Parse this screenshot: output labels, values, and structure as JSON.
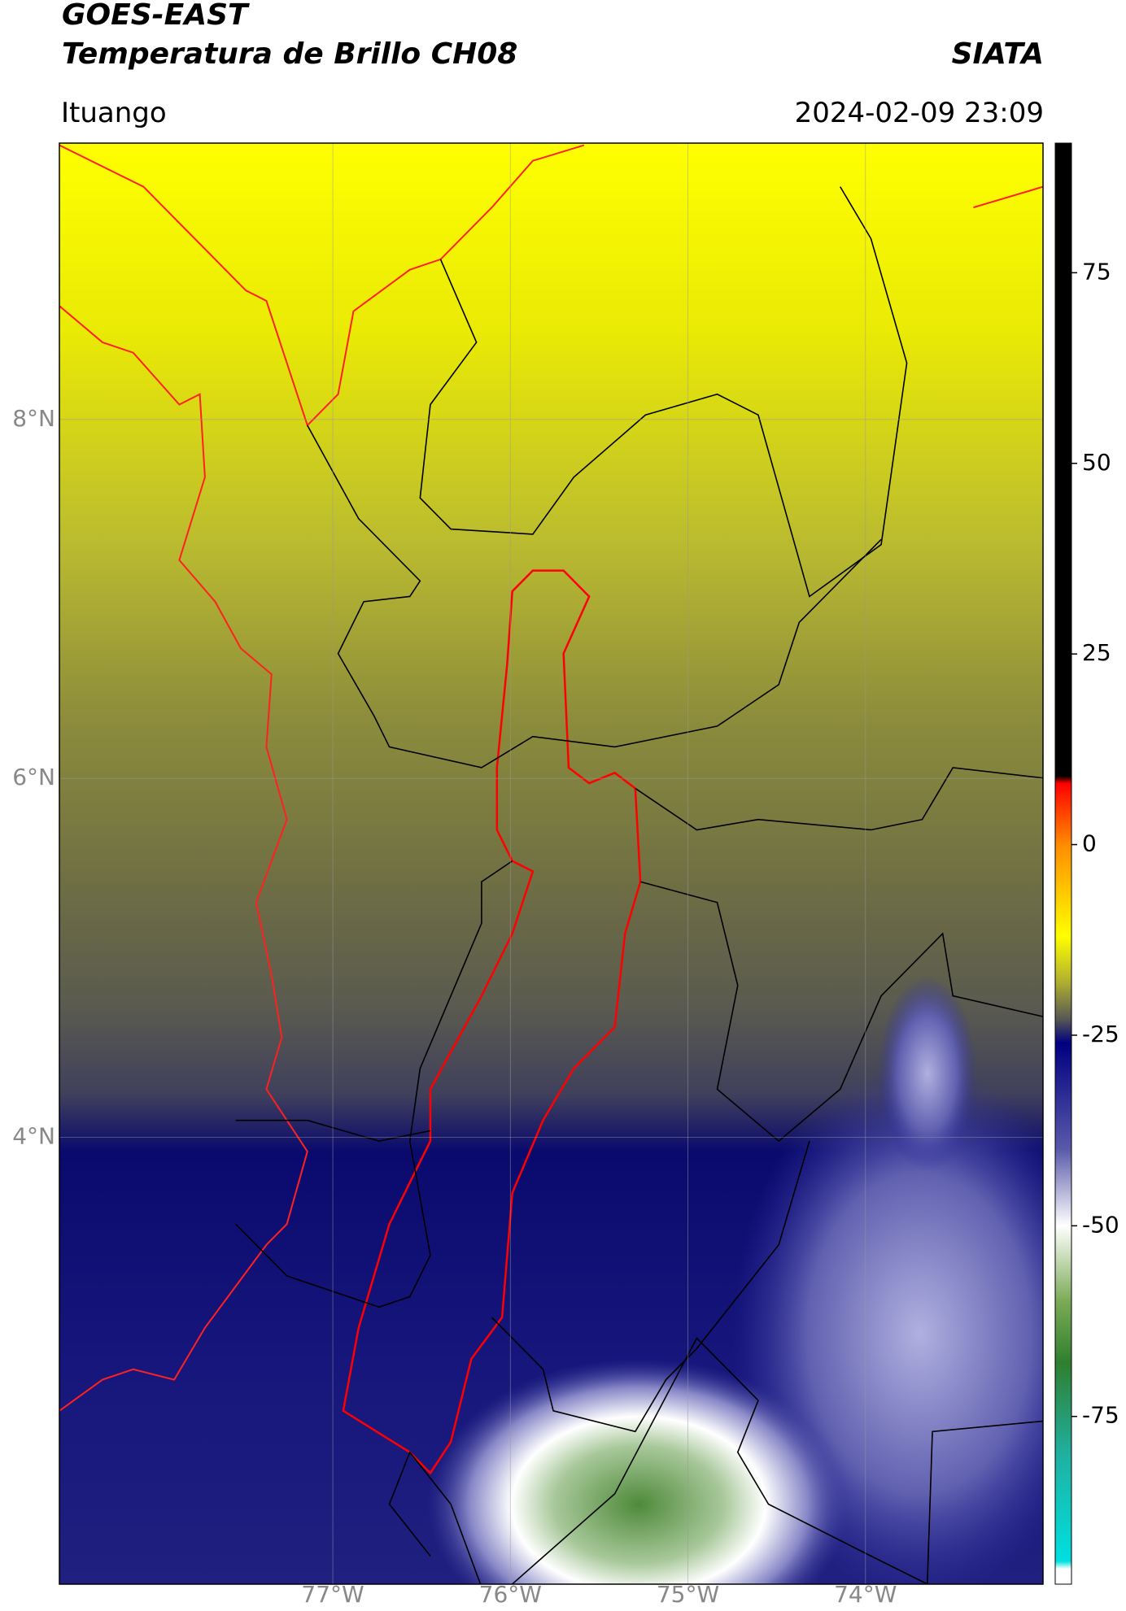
{
  "header": {
    "title_line1": "GOES-EAST",
    "title_line2": "Temperatura de Brillo CH08",
    "brand": "SIATA",
    "location": "Ituango",
    "datetime": "2024-02-09 23:09"
  },
  "map": {
    "xlim": [
      -78.54,
      -73.0
    ],
    "ylim": [
      1.51,
      9.54
    ],
    "xticks": [
      {
        "value": -77,
        "label": "77°W"
      },
      {
        "value": -76,
        "label": "76°W"
      },
      {
        "value": -75,
        "label": "75°W"
      },
      {
        "value": -74,
        "label": "74°W"
      }
    ],
    "yticks": [
      {
        "value": 8,
        "label": "8°N"
      },
      {
        "value": 6,
        "label": "6°N"
      },
      {
        "value": 4,
        "label": "4°N"
      }
    ],
    "grid": true
  },
  "colorbar": {
    "lim": [
      -97,
      92
    ],
    "ticks": [
      75,
      50,
      25,
      0,
      -25,
      -50,
      -75
    ],
    "stops": [
      {
        "value": 92,
        "color": "#000000"
      },
      {
        "value": 9,
        "color": "#000000"
      },
      {
        "value": 8,
        "color": "#ff0000"
      },
      {
        "value": 0,
        "color": "#ff8c00"
      },
      {
        "value": -12,
        "color": "#ffff00"
      },
      {
        "value": -18,
        "color": "#b0b030"
      },
      {
        "value": -23,
        "color": "#555555"
      },
      {
        "value": -26,
        "color": "#000080"
      },
      {
        "value": -40,
        "color": "#5a5aaa"
      },
      {
        "value": -50,
        "color": "#ffffff"
      },
      {
        "value": -60,
        "color": "#7aaa55"
      },
      {
        "value": -68,
        "color": "#2f7f2f"
      },
      {
        "value": -80,
        "color": "#20b0a0"
      },
      {
        "value": -94,
        "color": "#00e0e0"
      },
      {
        "value": -95,
        "color": "#ffffff"
      },
      {
        "value": -97,
        "color": "#ffffff"
      }
    ]
  }
}
